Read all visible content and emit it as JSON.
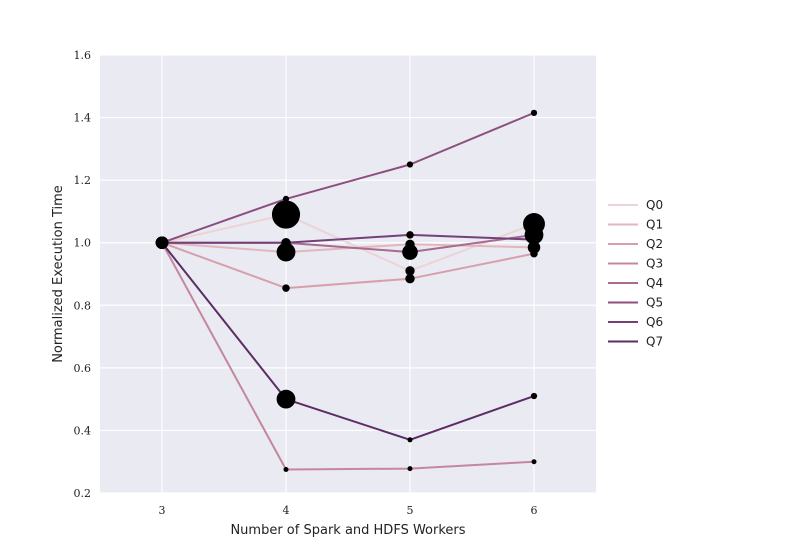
{
  "chart_data": {
    "type": "line",
    "title": "",
    "xlabel": "Number of Spark and HDFS Workers",
    "ylabel": "Normalized Execution Time",
    "x": [
      3,
      4,
      5,
      6
    ],
    "xlim": [
      2.5,
      6.5
    ],
    "ylim": [
      0.2,
      1.6
    ],
    "xticks": [
      "3",
      "4",
      "5",
      "6"
    ],
    "yticks": [
      "0.2",
      "0.4",
      "0.6",
      "0.8",
      "1.0",
      "1.2",
      "1.4",
      "1.6"
    ],
    "grid": true,
    "legend_position": "right",
    "series": [
      {
        "name": "Q0",
        "color": "#ecd3d5",
        "values": [
          1.0,
          1.09,
          0.91,
          1.06
        ],
        "errors": [
          0.02,
          0.045,
          0.015,
          0.035
        ]
      },
      {
        "name": "Q1",
        "color": "#e2b6bd",
        "values": [
          1.0,
          0.97,
          0.995,
          0.985
        ],
        "errors": [
          0.02,
          0.03,
          0.015,
          0.02
        ]
      },
      {
        "name": "Q2",
        "color": "#d69fab",
        "values": [
          1.0,
          0.855,
          0.885,
          0.965
        ],
        "errors": [
          0.02,
          0.012,
          0.015,
          0.012
        ]
      },
      {
        "name": "Q3",
        "color": "#c4879e",
        "values": [
          1.0,
          0.275,
          0.278,
          0.3
        ],
        "errors": [
          0.02,
          0.008,
          0.008,
          0.008
        ]
      },
      {
        "name": "Q4",
        "color": "#a86b8d",
        "values": [
          1.0,
          1.0,
          0.97,
          1.025
        ],
        "errors": [
          0.02,
          0.015,
          0.025,
          0.03
        ]
      },
      {
        "name": "Q5",
        "color": "#8c4f7f",
        "values": [
          1.0,
          1.14,
          1.25,
          1.415
        ],
        "errors": [
          0.02,
          0.01,
          0.01,
          0.01
        ]
      },
      {
        "name": "Q6",
        "color": "#734077",
        "values": [
          1.0,
          1.0,
          1.025,
          1.01
        ],
        "errors": [
          0.02,
          0.012,
          0.012,
          0.012
        ]
      },
      {
        "name": "Q7",
        "color": "#5b2d64",
        "values": [
          1.0,
          0.5,
          0.37,
          0.51
        ],
        "errors": [
          0.02,
          0.03,
          0.008,
          0.01
        ]
      }
    ]
  }
}
